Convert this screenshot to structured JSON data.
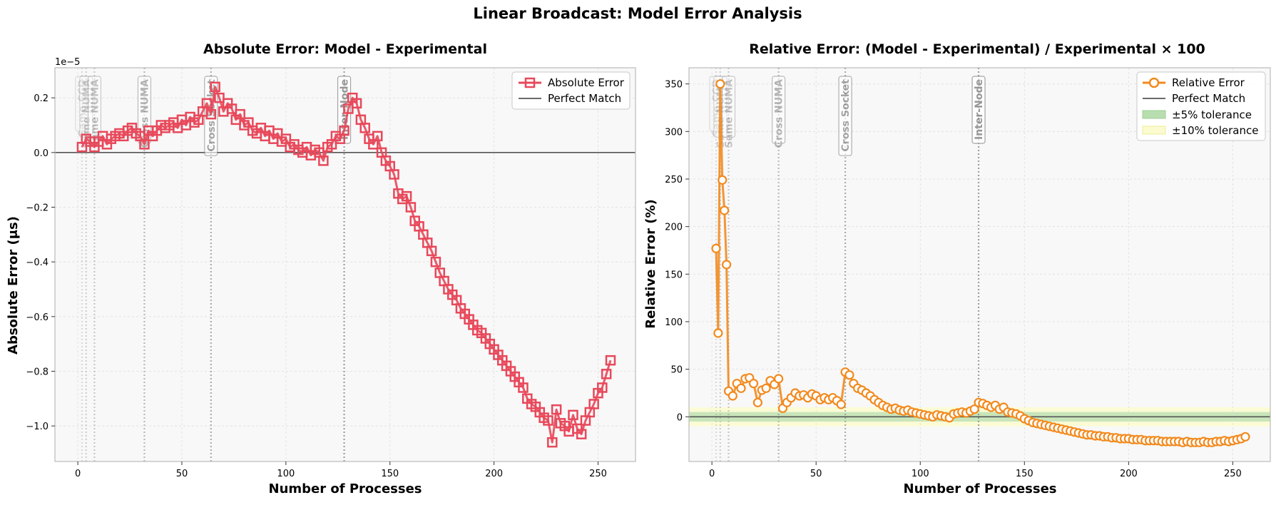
{
  "figure_title": "Linear Broadcast: Model Error Analysis",
  "colors": {
    "abs_series": "#e8485a",
    "rel_series": "#f28a1e",
    "perfect_line": "#555555",
    "tol5": "#b8deb0",
    "tol10": "#fbfbcf",
    "plot_bg": "#f8f8f8"
  },
  "chart_data": [
    {
      "type": "line",
      "title": "Absolute Error: Model - Experimental",
      "xlabel": "Number of Processes",
      "ylabel": "Absolute Error (μs)",
      "offset_text": "1e−5",
      "xlim": [
        -11,
        268
      ],
      "ylim": [
        -1.13,
        0.31
      ],
      "xticks": [
        0,
        50,
        100,
        150,
        200,
        250
      ],
      "yticks": [
        0.2,
        0.0,
        -0.2,
        -0.4,
        -0.6,
        -0.8,
        -1.0
      ],
      "ytick_labels": [
        "0.2",
        "0.0",
        "−0.2",
        "−0.4",
        "−0.6",
        "−0.8",
        "−1.0"
      ],
      "grid": true,
      "legend_position": "top-right",
      "topology_markers": [
        {
          "x": 2,
          "label": "Same CCD"
        },
        {
          "x": 4,
          "label": "Same NUMA"
        },
        {
          "x": 8,
          "label": "Same NUMA"
        },
        {
          "x": 32,
          "label": "Cross NUMA"
        },
        {
          "x": 64,
          "label": "Cross Socket"
        },
        {
          "x": 128,
          "label": "Inter-Node"
        }
      ],
      "series": [
        {
          "name": "Absolute Error",
          "x": [
            2,
            4,
            6,
            8,
            10,
            12,
            14,
            16,
            18,
            20,
            22,
            24,
            26,
            28,
            30,
            32,
            34,
            36,
            38,
            40,
            42,
            44,
            46,
            48,
            50,
            52,
            54,
            56,
            58,
            60,
            62,
            64,
            66,
            68,
            70,
            72,
            74,
            76,
            78,
            80,
            82,
            84,
            86,
            88,
            90,
            92,
            94,
            96,
            98,
            100,
            102,
            104,
            106,
            108,
            110,
            112,
            114,
            116,
            118,
            120,
            122,
            124,
            126,
            128,
            130,
            132,
            134,
            136,
            138,
            140,
            142,
            144,
            146,
            148,
            150,
            152,
            154,
            156,
            158,
            160,
            162,
            164,
            166,
            168,
            170,
            172,
            174,
            176,
            178,
            180,
            182,
            184,
            186,
            188,
            190,
            192,
            194,
            196,
            198,
            200,
            202,
            204,
            206,
            208,
            210,
            212,
            214,
            216,
            218,
            220,
            222,
            224,
            226,
            228,
            230,
            232,
            234,
            236,
            238,
            240,
            242,
            244,
            246,
            248,
            250,
            252,
            254,
            256
          ],
          "values": [
            0.02,
            0.05,
            0.04,
            0.02,
            0.04,
            0.06,
            0.03,
            0.05,
            0.06,
            0.07,
            0.06,
            0.08,
            0.09,
            0.07,
            0.06,
            0.03,
            0.08,
            0.06,
            0.08,
            0.1,
            0.09,
            0.1,
            0.11,
            0.09,
            0.12,
            0.1,
            0.13,
            0.11,
            0.12,
            0.15,
            0.18,
            0.14,
            0.24,
            0.2,
            0.15,
            0.18,
            0.16,
            0.12,
            0.14,
            0.1,
            0.11,
            0.08,
            0.07,
            0.09,
            0.06,
            0.08,
            0.05,
            0.07,
            0.04,
            0.05,
            0.02,
            0.03,
            0.01,
            0.0,
            0.02,
            -0.01,
            0.01,
            0.0,
            -0.03,
            0.02,
            0.03,
            0.06,
            0.05,
            0.08,
            0.16,
            0.2,
            0.18,
            0.12,
            0.09,
            0.05,
            0.03,
            0.06,
            0.0,
            -0.03,
            -0.05,
            -0.08,
            -0.15,
            -0.17,
            -0.16,
            -0.2,
            -0.25,
            -0.27,
            -0.3,
            -0.33,
            -0.36,
            -0.4,
            -0.44,
            -0.47,
            -0.5,
            -0.52,
            -0.54,
            -0.57,
            -0.59,
            -0.61,
            -0.63,
            -0.65,
            -0.66,
            -0.68,
            -0.7,
            -0.72,
            -0.74,
            -0.76,
            -0.78,
            -0.8,
            -0.82,
            -0.84,
            -0.86,
            -0.9,
            -0.92,
            -0.93,
            -0.95,
            -0.97,
            -0.98,
            -1.06,
            -0.94,
            -0.99,
            -1.0,
            -1.02,
            -0.96,
            -1.01,
            -1.03,
            -0.98,
            -0.95,
            -0.92,
            -0.88,
            -0.86,
            -0.81,
            -0.76
          ]
        },
        {
          "name": "Perfect Match",
          "kind": "reference_line",
          "y": 0
        }
      ]
    },
    {
      "type": "line",
      "title": "Relative Error: (Model - Experimental) / Experimental × 100",
      "xlabel": "Number of Processes",
      "ylabel": "Relative Error (%)",
      "xlim": [
        -11,
        268
      ],
      "ylim": [
        -47,
        367
      ],
      "xticks": [
        0,
        50,
        100,
        150,
        200,
        250
      ],
      "yticks": [
        350,
        300,
        250,
        200,
        150,
        100,
        50,
        0
      ],
      "ytick_labels": [
        "350",
        "300",
        "250",
        "200",
        "150",
        "100",
        "50",
        "0"
      ],
      "grid": true,
      "legend_position": "top-right",
      "topology_markers": [
        {
          "x": 2,
          "label": "Same CCD"
        },
        {
          "x": 4,
          "label": "Same NUMA"
        },
        {
          "x": 8,
          "label": "Same NUMA"
        },
        {
          "x": 32,
          "label": "Cross NUMA"
        },
        {
          "x": 64,
          "label": "Cross Socket"
        },
        {
          "x": 128,
          "label": "Inter-Node"
        }
      ],
      "series": [
        {
          "name": "Relative Error",
          "x": [
            2,
            3,
            4,
            5,
            6,
            7,
            8,
            10,
            12,
            14,
            16,
            18,
            20,
            22,
            24,
            26,
            28,
            30,
            32,
            34,
            36,
            38,
            40,
            42,
            44,
            46,
            48,
            50,
            52,
            54,
            56,
            58,
            60,
            62,
            64,
            66,
            68,
            70,
            72,
            74,
            76,
            78,
            80,
            82,
            84,
            86,
            88,
            90,
            92,
            94,
            96,
            98,
            100,
            102,
            104,
            106,
            108,
            110,
            112,
            114,
            116,
            118,
            120,
            122,
            124,
            126,
            128,
            130,
            132,
            134,
            136,
            138,
            140,
            142,
            144,
            146,
            148,
            150,
            152,
            154,
            156,
            158,
            160,
            162,
            164,
            166,
            168,
            170,
            172,
            174,
            176,
            178,
            180,
            182,
            184,
            186,
            188,
            190,
            192,
            194,
            196,
            198,
            200,
            202,
            204,
            206,
            208,
            210,
            212,
            214,
            216,
            218,
            220,
            222,
            224,
            226,
            228,
            230,
            232,
            234,
            236,
            238,
            240,
            242,
            244,
            246,
            248,
            250,
            252,
            254,
            256
          ],
          "values": [
            177,
            88,
            350,
            249,
            217,
            160,
            27,
            22,
            35,
            30,
            40,
            41,
            35,
            15,
            28,
            30,
            38,
            34,
            40,
            9,
            15,
            20,
            25,
            22,
            23,
            20,
            24,
            22,
            18,
            20,
            18,
            20,
            17,
            13,
            47,
            44,
            35,
            30,
            28,
            25,
            22,
            18,
            15,
            12,
            10,
            8,
            9,
            7,
            6,
            7,
            5,
            4,
            3,
            2,
            1,
            0,
            2,
            1,
            0,
            -1,
            3,
            4,
            5,
            4,
            6,
            8,
            15,
            14,
            12,
            10,
            12,
            8,
            10,
            5,
            4,
            3,
            1,
            -2,
            -4,
            -6,
            -7,
            -8,
            -9,
            -10,
            -11,
            -12,
            -13,
            -14,
            -15,
            -16,
            -17,
            -18,
            -19,
            -19,
            -20,
            -20,
            -21,
            -21,
            -22,
            -22,
            -23,
            -23,
            -23,
            -24,
            -24,
            -24,
            -25,
            -25,
            -25,
            -25,
            -26,
            -26,
            -26,
            -26,
            -26,
            -27,
            -26,
            -27,
            -27,
            -27,
            -26,
            -27,
            -27,
            -26,
            -26,
            -25,
            -26,
            -25,
            -24,
            -23,
            -21
          ]
        },
        {
          "name": "Perfect Match",
          "kind": "reference_line",
          "y": 0
        },
        {
          "name": "±5% tolerance",
          "kind": "band",
          "range": [
            -5,
            5
          ]
        },
        {
          "name": "±10% tolerance",
          "kind": "band",
          "range": [
            -10,
            10
          ]
        }
      ]
    }
  ]
}
